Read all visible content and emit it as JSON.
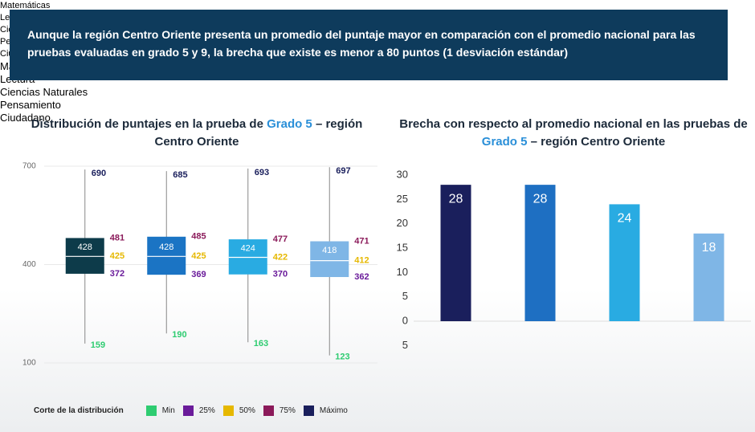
{
  "header": {
    "text": "Aunque la región Centro Oriente presenta un promedio del puntaje mayor en comparación con el promedio nacional para las pruebas evaluadas en grado 5 y 9, la brecha que existe es menor a 80 puntos (1 desviación estándar)"
  },
  "chart_data": [
    {
      "type": "box",
      "title": [
        "Distribución de puntajes en la prueba de ",
        "Grado 5",
        " – región Centro Oriente"
      ],
      "categories": [
        "Matemáticas",
        "Lectura",
        "Ciencias Naturales",
        "Pensamiento Ciudadano"
      ],
      "series": [
        {
          "name": "Min",
          "color": "#2ecc71",
          "values": [
            159,
            190,
            163,
            123
          ]
        },
        {
          "name": "25%",
          "color": "#6a1b9a",
          "values": [
            372,
            369,
            370,
            362
          ]
        },
        {
          "name": "50%",
          "color": "#e6b800",
          "values": [
            425,
            425,
            422,
            412
          ]
        },
        {
          "name": "75%",
          "color": "#8b1a5a",
          "values": [
            481,
            485,
            477,
            471
          ]
        },
        {
          "name": "Máximo",
          "color": "#1a1f5c",
          "values": [
            690,
            685,
            693,
            697
          ]
        }
      ],
      "mean": [
        428,
        428,
        424,
        418
      ],
      "box_colors": [
        "#0d3b4a",
        "#1b74c4",
        "#29abe2",
        "#7fb6e6"
      ],
      "legend_title": "Corte de la distribución",
      "ylim": [
        100,
        700
      ],
      "yticks": [
        100,
        400,
        700
      ],
      "grid": true
    },
    {
      "type": "bar",
      "title": [
        "Brecha con respecto al promedio nacional en las pruebas de ",
        "Grado 5",
        " – región Centro Oriente"
      ],
      "categories": [
        "Matemáticas",
        "Lectura",
        "Ciencias Naturales",
        "Pensamiento Ciudadano"
      ],
      "values": [
        28,
        28,
        24,
        18
      ],
      "colors": [
        "#1a1f5c",
        "#1e6fc2",
        "#29abe2",
        "#7fb6e6"
      ],
      "ylim": [
        -5,
        30
      ],
      "yticks": [
        {
          "value": -5,
          "label": "5"
        },
        0,
        5,
        10,
        15,
        20,
        25,
        30
      ]
    }
  ]
}
